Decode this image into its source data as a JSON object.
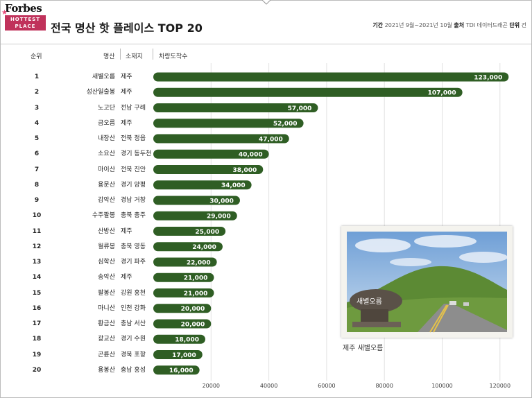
{
  "header": {
    "logo_text": "Forbes",
    "logo_badge_line1": "HOTTEST",
    "logo_badge_line2": "PLACE",
    "title": "전국 명산 핫 플레이스 TOP 20",
    "meta_period_label": "기간",
    "meta_period": "2021년 9월~2021년 10월",
    "meta_source_label": "출처",
    "meta_source": "TDI 데이터드래곤",
    "meta_unit_label": "단위",
    "meta_unit": "건"
  },
  "columns": {
    "rank": "순위",
    "name": "명산",
    "location": "소재지",
    "value": "차량도착수"
  },
  "photo": {
    "sign_text": "새별오름",
    "caption": "제주 새별오름"
  },
  "colors": {
    "bar": "#2f5e24",
    "bar_label": "#ffffff"
  },
  "chart_data": {
    "type": "bar",
    "orientation": "horizontal",
    "title": "전국 명산 핫 플레이스 TOP 20",
    "xlabel": "차량도착수",
    "xlim": [
      0,
      125000
    ],
    "xticks": [
      20000,
      40000,
      60000,
      80000,
      100000,
      120000
    ],
    "xtick_labels": [
      "20000",
      "40000",
      "60000",
      "80000",
      "100000",
      "120000"
    ],
    "grid": true,
    "rows": [
      {
        "rank": "1",
        "name": "새별오름",
        "location": "제주",
        "value": 123000,
        "label": "123,000"
      },
      {
        "rank": "2",
        "name": "성산일출봉",
        "location": "제주",
        "value": 107000,
        "label": "107,000"
      },
      {
        "rank": "3",
        "name": "노고단",
        "location": "전남 구례",
        "value": 57000,
        "label": "57,000"
      },
      {
        "rank": "4",
        "name": "금오름",
        "location": "제주",
        "value": 52000,
        "label": "52,000"
      },
      {
        "rank": "5",
        "name": "내장산",
        "location": "전북 정읍",
        "value": 47000,
        "label": "47,000"
      },
      {
        "rank": "6",
        "name": "소요산",
        "location": "경기 동두천",
        "value": 40000,
        "label": "40,000"
      },
      {
        "rank": "7",
        "name": "마이산",
        "location": "전북 진안",
        "value": 38000,
        "label": "38,000"
      },
      {
        "rank": "8",
        "name": "용문산",
        "location": "경기 양평",
        "value": 34000,
        "label": "34,000"
      },
      {
        "rank": "9",
        "name": "감악산",
        "location": "경남 거창",
        "value": 30000,
        "label": "30,000"
      },
      {
        "rank": "10",
        "name": "수주팔봉",
        "location": "충북 충주",
        "value": 29000,
        "label": "29,000"
      },
      {
        "rank": "11",
        "name": "산방산",
        "location": "제주",
        "value": 25000,
        "label": "25,000"
      },
      {
        "rank": "12",
        "name": "월류봉",
        "location": "충북 영동",
        "value": 24000,
        "label": "24,000"
      },
      {
        "rank": "13",
        "name": "심학산",
        "location": "경기 파주",
        "value": 22000,
        "label": "22,000"
      },
      {
        "rank": "14",
        "name": "송악산",
        "location": "제주",
        "value": 21000,
        "label": "21,000"
      },
      {
        "rank": "15",
        "name": "팔봉산",
        "location": "강원 홍천",
        "value": 21000,
        "label": "21,000"
      },
      {
        "rank": "16",
        "name": "마니산",
        "location": "인천 강화",
        "value": 20000,
        "label": "20,000"
      },
      {
        "rank": "17",
        "name": "황금산",
        "location": "충남 서산",
        "value": 20000,
        "label": "20,000"
      },
      {
        "rank": "18",
        "name": "광교산",
        "location": "경기 수원",
        "value": 18000,
        "label": "18,000"
      },
      {
        "rank": "19",
        "name": "곤륜산",
        "location": "경북 포항",
        "value": 17000,
        "label": "17,000"
      },
      {
        "rank": "20",
        "name": "용봉산",
        "location": "충남 홍성",
        "value": 16000,
        "label": "16,000"
      }
    ]
  }
}
